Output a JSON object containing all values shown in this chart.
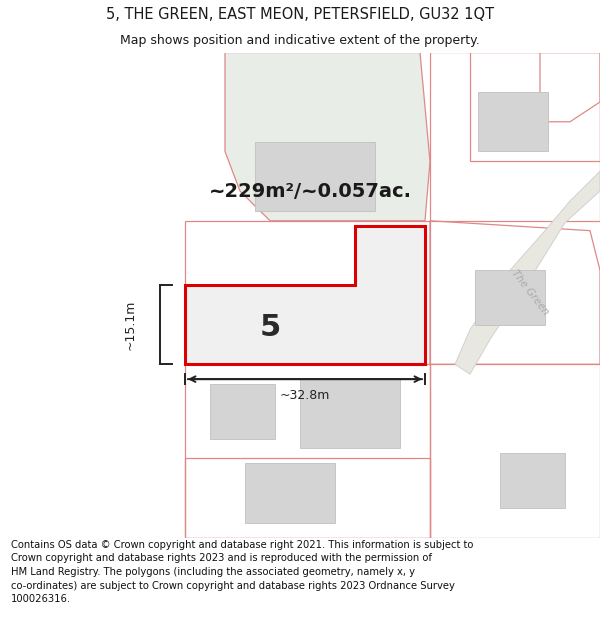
{
  "title": "5, THE GREEN, EAST MEON, PETERSFIELD, GU32 1QT",
  "subtitle": "Map shows position and indicative extent of the property.",
  "footer": "Contains OS data © Crown copyright and database right 2021. This information is subject to\nCrown copyright and database rights 2023 and is reproduced with the permission of\nHM Land Registry. The polygons (including the associated geometry, namely x, y\nco-ordinates) are subject to Crown copyright and database rights 2023 Ordnance Survey\n100026316.",
  "area_label": "~229m²/~0.057ac.",
  "width_label": "~32.8m",
  "height_label": "~15.1m",
  "property_number": "5",
  "bg_color": "#ffffff",
  "map_bg": "#ffffff",
  "property_fill": "#f0f0f0",
  "property_outline": "#dd0000",
  "parcel_outline": "#e08888",
  "green_fill": "#e8ede8",
  "building_fill": "#d4d4d4",
  "building_outline": "#c0c0c0",
  "road_label_color": "#aaaaaa",
  "measure_color": "#222222",
  "text_color": "#1a1a1a",
  "title_fontsize": 10.5,
  "subtitle_fontsize": 9,
  "footer_fontsize": 7.2,
  "area_fontsize": 14,
  "number_fontsize": 22,
  "measure_fontsize": 9
}
